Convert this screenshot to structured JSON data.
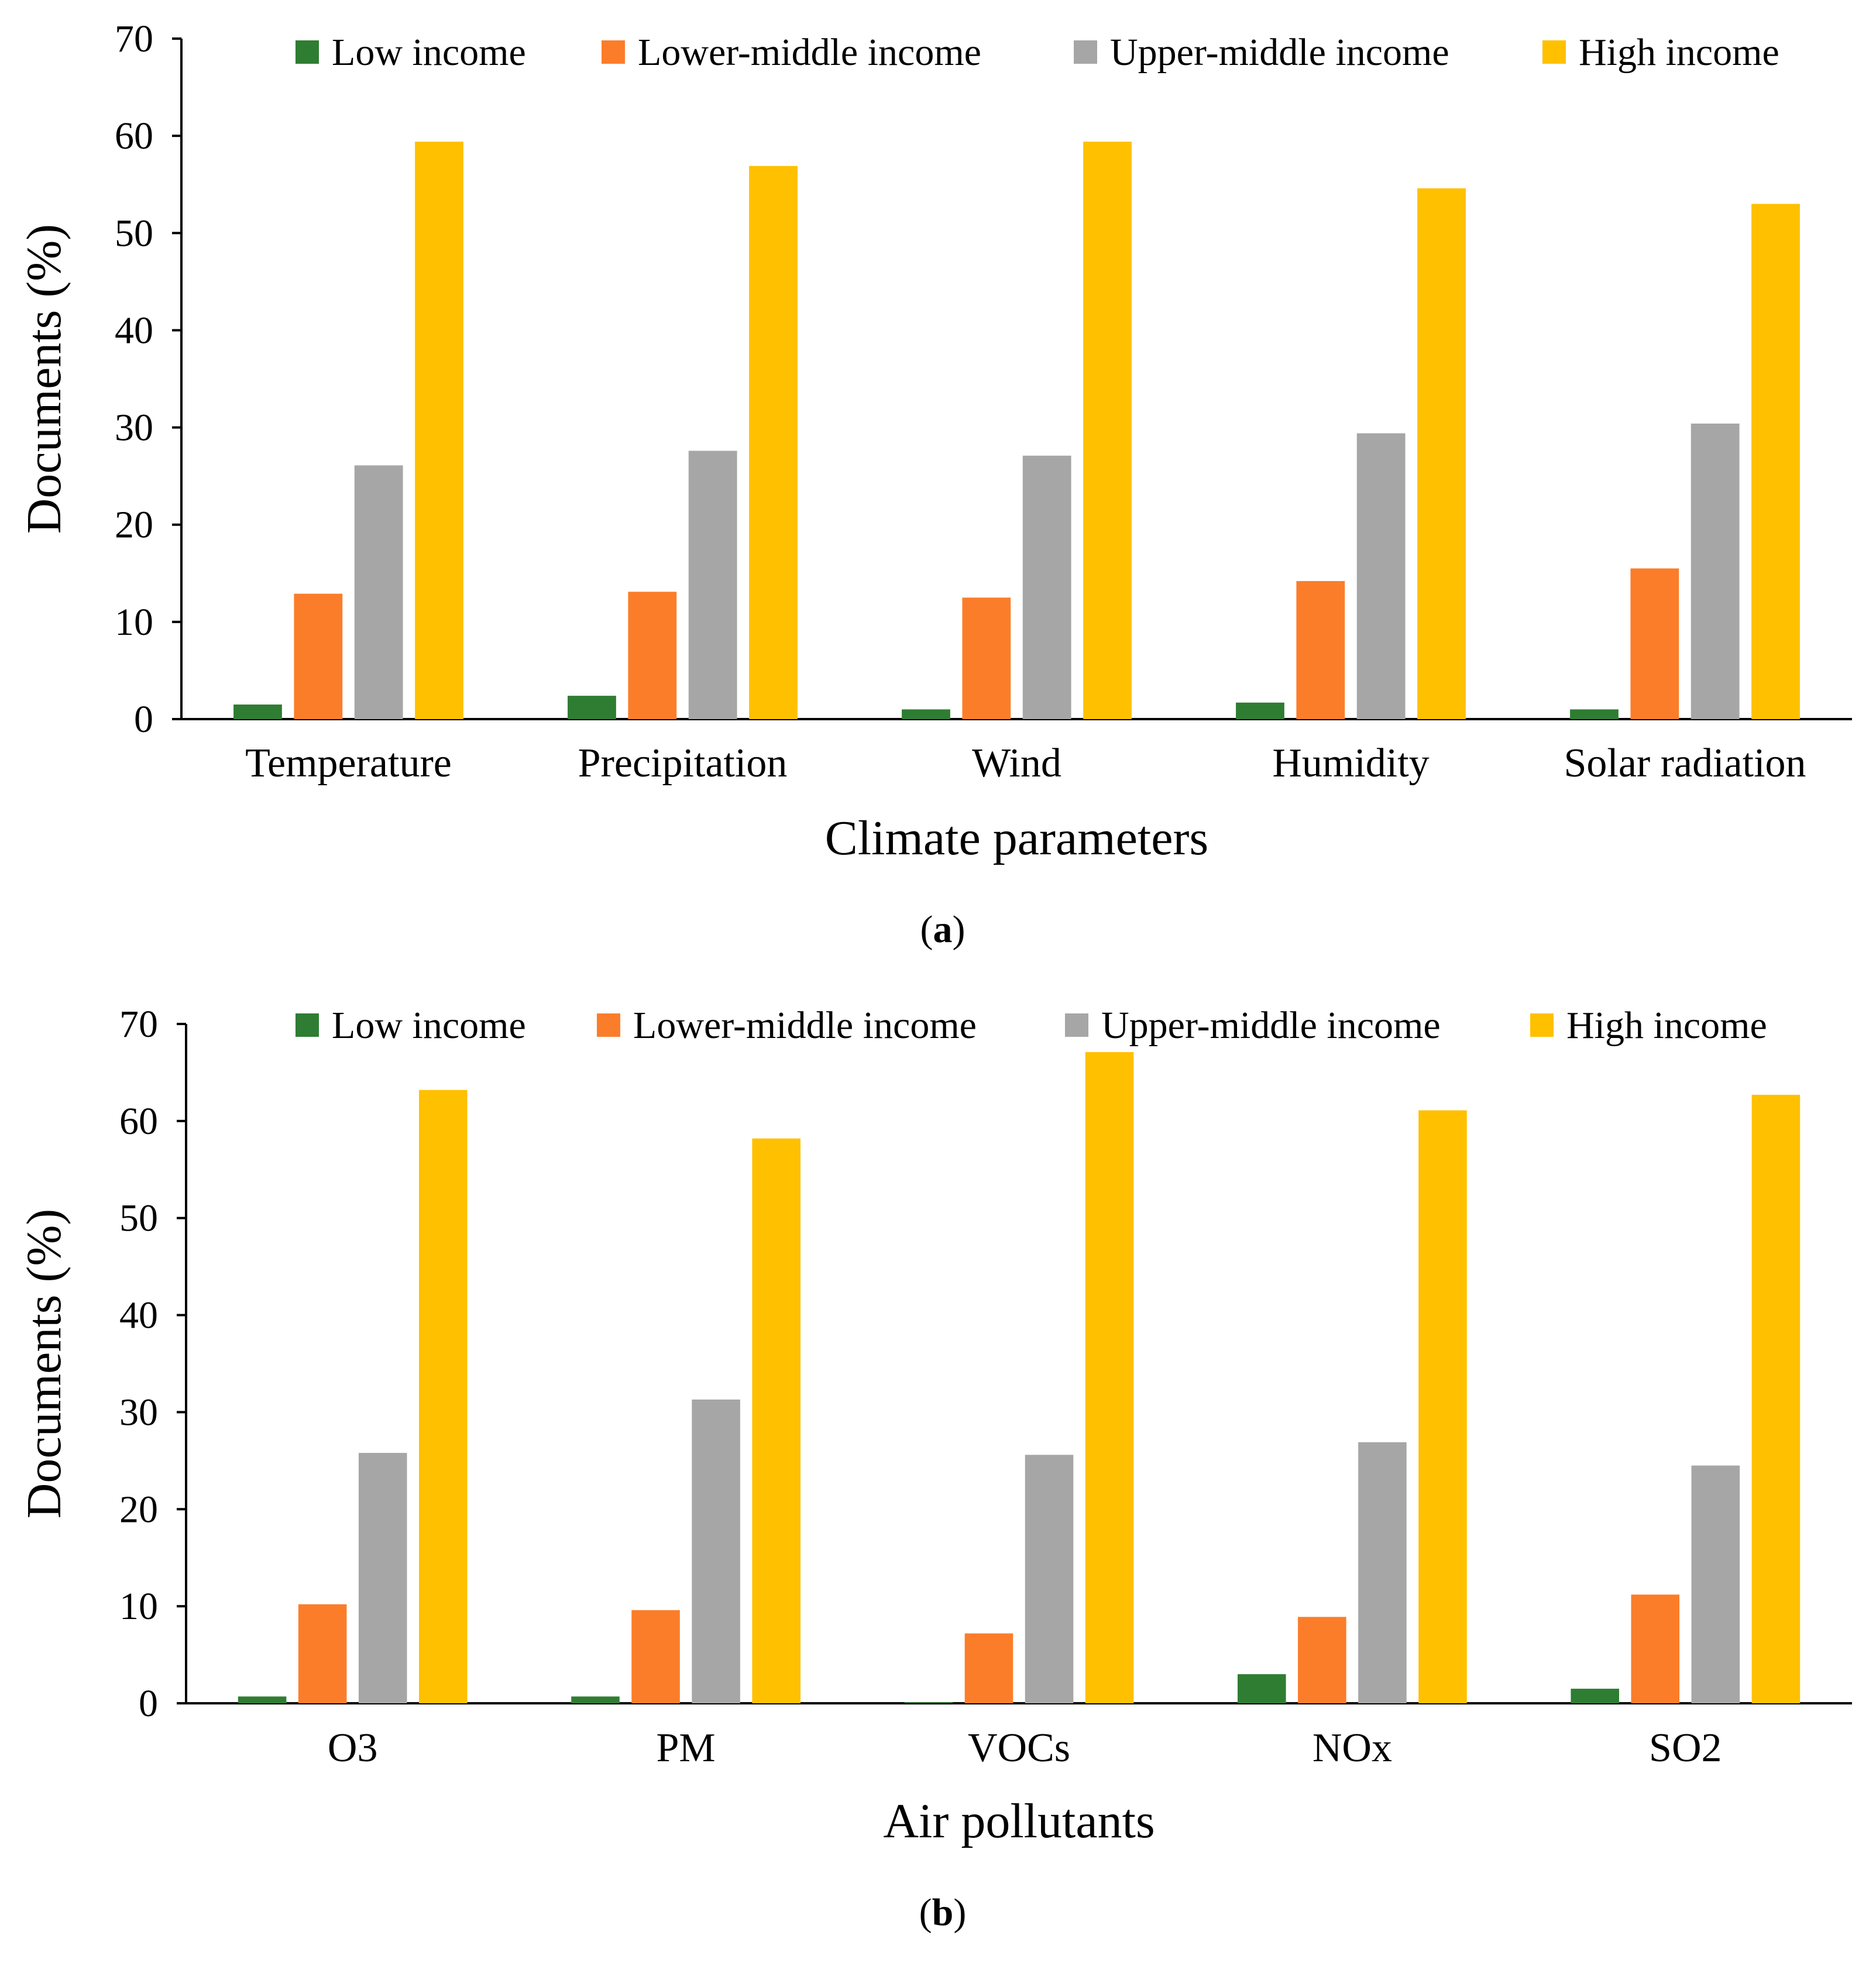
{
  "figure": {
    "panels": [
      "(a)",
      "(b)"
    ]
  },
  "chart_data": [
    {
      "type": "bar",
      "panel": "a",
      "panel_label_letter": "a",
      "title": "",
      "xlabel": "Climate parameters",
      "ylabel": "Documents (%)",
      "ylim": [
        0,
        70
      ],
      "yticks": [
        0,
        10,
        20,
        30,
        40,
        50,
        60,
        70
      ],
      "grid": false,
      "legend_position": "top",
      "categories": [
        "Temperature",
        "Precipitation",
        "Wind",
        "Humidity",
        "Solar radiation"
      ],
      "series": [
        {
          "name": "Low income",
          "color": "#2e7d32",
          "values": [
            1.5,
            2.4,
            1.0,
            1.7,
            1.0
          ]
        },
        {
          "name": "Lower-middle income",
          "color": "#fb7d2a",
          "values": [
            12.9,
            13.1,
            12.5,
            14.2,
            15.5
          ]
        },
        {
          "name": "Upper-middle income",
          "color": "#a6a6a6",
          "values": [
            26.1,
            27.6,
            27.1,
            29.4,
            30.4
          ]
        },
        {
          "name": "High income",
          "color": "#ffc000",
          "values": [
            59.4,
            56.9,
            59.4,
            54.6,
            53.0
          ]
        }
      ]
    },
    {
      "type": "bar",
      "panel": "b",
      "panel_label_letter": "b",
      "title": "",
      "xlabel": "Air pollutants",
      "ylabel": "Documents (%)",
      "ylim": [
        0,
        70
      ],
      "yticks": [
        0,
        10,
        20,
        30,
        40,
        50,
        60,
        70
      ],
      "grid": false,
      "legend_position": "top",
      "categories": [
        "O3",
        "PM",
        "VOCs",
        "NOx",
        "SO2"
      ],
      "series": [
        {
          "name": "Low income",
          "color": "#2e7d32",
          "values": [
            0.7,
            0.7,
            0.1,
            3.0,
            1.5
          ]
        },
        {
          "name": "Lower-middle income",
          "color": "#fb7d2a",
          "values": [
            10.2,
            9.6,
            7.2,
            8.9,
            11.2
          ]
        },
        {
          "name": "Upper-middle income",
          "color": "#a6a6a6",
          "values": [
            25.8,
            31.3,
            25.6,
            26.9,
            24.5
          ]
        },
        {
          "name": "High income",
          "color": "#ffc000",
          "values": [
            63.2,
            58.2,
            67.1,
            61.1,
            62.7
          ]
        }
      ]
    }
  ]
}
